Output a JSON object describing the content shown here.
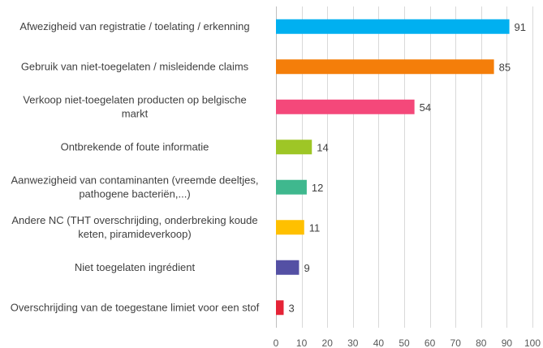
{
  "chart_data": {
    "type": "bar",
    "orientation": "horizontal",
    "title": "",
    "xlabel": "",
    "ylabel": "",
    "xlim": [
      0,
      100
    ],
    "x_ticks": [
      0,
      10,
      20,
      30,
      40,
      50,
      60,
      70,
      80,
      90,
      100
    ],
    "grid": true,
    "legend": "none",
    "categories": [
      {
        "lines": [
          "Afwezigheid van registratie / toelating / erkenning"
        ],
        "value": 91,
        "color": "#00b0f0"
      },
      {
        "lines": [
          "Gebruik van niet-toegelaten / misleidende claims"
        ],
        "value": 85,
        "color": "#f47e0a"
      },
      {
        "lines": [
          "Verkoop niet-toegelaten producten op belgische",
          "markt"
        ],
        "value": 54,
        "color": "#f4487a"
      },
      {
        "lines": [
          "Ontbrekende of foute informatie"
        ],
        "value": 14,
        "color": "#9ec626"
      },
      {
        "lines": [
          "Aanwezigheid van contaminanten (vreemde deeltjes,",
          "pathogene bacteriën,...)"
        ],
        "value": 12,
        "color": "#3fb88e"
      },
      {
        "lines": [
          "Andere NC (THT overschrijding, onderbreking koude",
          "keten, piramideverkoop)"
        ],
        "value": 11,
        "color": "#ffc000"
      },
      {
        "lines": [
          "Niet toegelaten ingrédient"
        ],
        "value": 9,
        "color": "#5450a4"
      },
      {
        "lines": [
          "Overschrijding van de toegestane limiet voor een stof"
        ],
        "value": 3,
        "color": "#e52336"
      }
    ]
  }
}
